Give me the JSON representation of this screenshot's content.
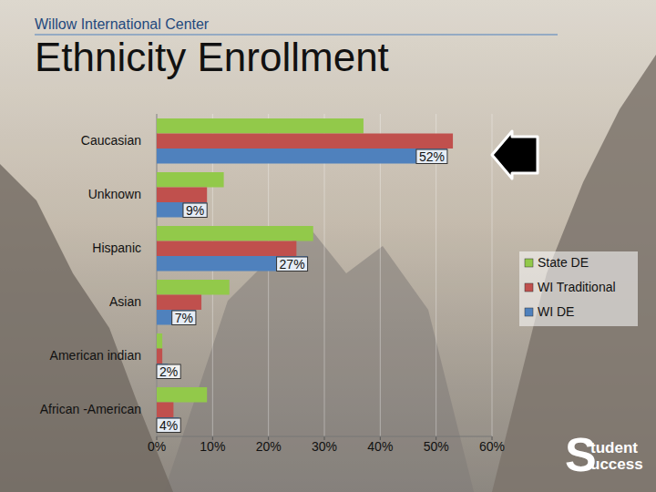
{
  "header": "Willow International Center",
  "logo": {
    "initial": "S",
    "lines": [
      "tudent",
      "uccess"
    ]
  },
  "chart_data": {
    "type": "bar",
    "title": "Ethnicity Enrollment",
    "orientation": "horizontal",
    "categories": [
      "Caucasian",
      "Unknown",
      "Hispanic",
      "Asian",
      "American indian",
      "African -American"
    ],
    "series": [
      {
        "name": "State DE",
        "color": "#92c94a",
        "values": [
          37,
          12,
          28,
          13,
          1,
          9
        ]
      },
      {
        "name": "WI Traditional",
        "color": "#c0504d",
        "values": [
          53,
          9,
          25,
          8,
          1,
          3
        ]
      },
      {
        "name": "WI DE",
        "color": "#4f81bd",
        "values": [
          52,
          9,
          27,
          7,
          2,
          4
        ],
        "data_labels": true,
        "value_labels": [
          "52%",
          "9%",
          "27%",
          "7%",
          "2%",
          "4%"
        ]
      }
    ],
    "xlim": [
      0,
      60
    ],
    "xticks": [
      {
        "value": 0,
        "label": "0%"
      },
      {
        "value": 10,
        "label": "10%"
      },
      {
        "value": 20,
        "label": "20%"
      },
      {
        "value": 30,
        "label": "30%"
      },
      {
        "value": 40,
        "label": "40%"
      },
      {
        "value": 50,
        "label": "50%"
      },
      {
        "value": 60,
        "label": "60%"
      }
    ],
    "grid": true,
    "legend": "right"
  }
}
